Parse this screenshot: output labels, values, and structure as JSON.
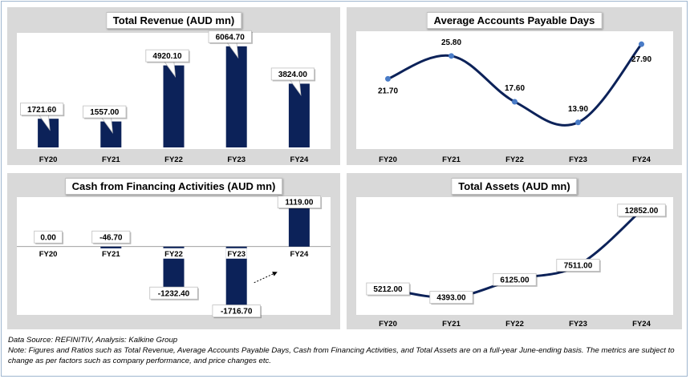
{
  "charts": [
    {
      "id": "revenue",
      "title": "Total Revenue (AUD mn)",
      "chart_data": {
        "type": "bar",
        "title": "Total Revenue (AUD mn)",
        "categories": [
          "FY20",
          "FY21",
          "FY22",
          "FY23",
          "FY24"
        ],
        "values": [
          1721.6,
          1557.0,
          4920.1,
          6064.7,
          3824.0
        ],
        "labels": [
          "1721.60",
          "1557.00",
          "4920.10",
          "6064.70",
          "3824.00"
        ],
        "ylim": [
          0,
          6200
        ]
      }
    },
    {
      "id": "apdays",
      "title": "Average Accounts Payable Days",
      "chart_data": {
        "type": "line",
        "title": "Average Accounts Payable Days",
        "categories": [
          "FY20",
          "FY21",
          "FY22",
          "FY23",
          "FY24"
        ],
        "values": [
          21.7,
          25.8,
          17.6,
          13.9,
          27.9
        ],
        "labels": [
          "21.70",
          "25.80",
          "17.60",
          "13.90",
          "27.90"
        ],
        "ylim": [
          12,
          28.5
        ]
      }
    },
    {
      "id": "cff",
      "title": "Cash from Financing Activities (AUD mn)",
      "chart_data": {
        "type": "bar",
        "title": "Cash from Financing Activities (AUD mn)",
        "categories": [
          "FY20",
          "FY21",
          "FY22",
          "FY23",
          "FY24"
        ],
        "values": [
          0.0,
          -46.7,
          -1232.4,
          -1716.7,
          1119.0
        ],
        "labels": [
          "0.00",
          "-46.70",
          "-1232.40",
          "-1716.70",
          "1119.00"
        ],
        "ylim": [
          -1800,
          1250
        ]
      }
    },
    {
      "id": "assets",
      "title": "Total Assets (AUD mn)",
      "chart_data": {
        "type": "line",
        "title": "Total Assets (AUD mn)",
        "categories": [
          "FY20",
          "FY21",
          "FY22",
          "FY23",
          "FY24"
        ],
        "values": [
          5212.0,
          4393.0,
          6125.0,
          7511.0,
          12852.0
        ],
        "labels": [
          "5212.00",
          "4393.00",
          "6125.00",
          "7511.00",
          "12852.00"
        ],
        "ylim": [
          3000,
          13500
        ]
      }
    }
  ],
  "footer": {
    "source": "Data Source: REFINITIV, Analysis: Kalkine Group",
    "note": "Note: Figures and Ratios such as Total Revenue, Average Accounts Payable Days, Cash from Financing Activities, and Total Assets  are on a full-year June-ending basis. The metrics are subject to change as per factors such as company performance, and price changes etc."
  },
  "colors": {
    "bar": "#0c2259",
    "line": "#0c2259",
    "marker": "#4a7cc7",
    "panel": "#d9d9d9",
    "plot": "#ffffff"
  }
}
